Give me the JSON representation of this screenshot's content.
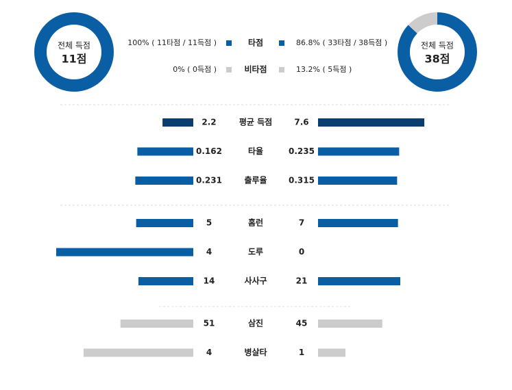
{
  "totals": [
    {
      "title": "전체 득점",
      "value": "11점"
    },
    {
      "title": "전체 득점",
      "value": "38점"
    }
  ],
  "legend": [
    {
      "name": "타점",
      "color": "#0a5fa4",
      "left": {
        "value": 100,
        "label": "100% ( 11타점 / 11득점 )"
      },
      "right": {
        "value": 86.8,
        "label": "86.8% ( 33타점 / 38득점 )"
      }
    },
    {
      "name": "비타점",
      "color": "#cccccc",
      "left": {
        "value": 0,
        "label": "0% ( 0득점 )"
      },
      "right": {
        "value": 13.2,
        "label": "13.2% ( 5득점 )"
      }
    }
  ],
  "groups": [
    {
      "rows": [
        {
          "label": "평균 득점",
          "color": "#0b3d6e",
          "left": 2.2,
          "right": 7.6
        },
        {
          "label": "타율",
          "color": "#0a5fa4",
          "left": 0.162,
          "right": 0.235
        },
        {
          "label": "출루율",
          "color": "#0a5fa4",
          "left": 0.231,
          "right": 0.315
        }
      ]
    },
    {
      "rows": [
        {
          "label": "홈런",
          "color": "#0a5fa4",
          "left": 5,
          "right": 7
        },
        {
          "label": "도루",
          "color": "#0a5fa4",
          "left": 4,
          "right": 0
        },
        {
          "label": "사사구",
          "color": "#0a5fa4",
          "left": 14,
          "right": 21
        }
      ]
    },
    {
      "rows": [
        {
          "label": "삼진",
          "color": "#cccccc",
          "left": 51,
          "right": 45
        },
        {
          "label": "병살타",
          "color": "#cccccc",
          "left": 4,
          "right": 1
        }
      ]
    }
  ]
}
